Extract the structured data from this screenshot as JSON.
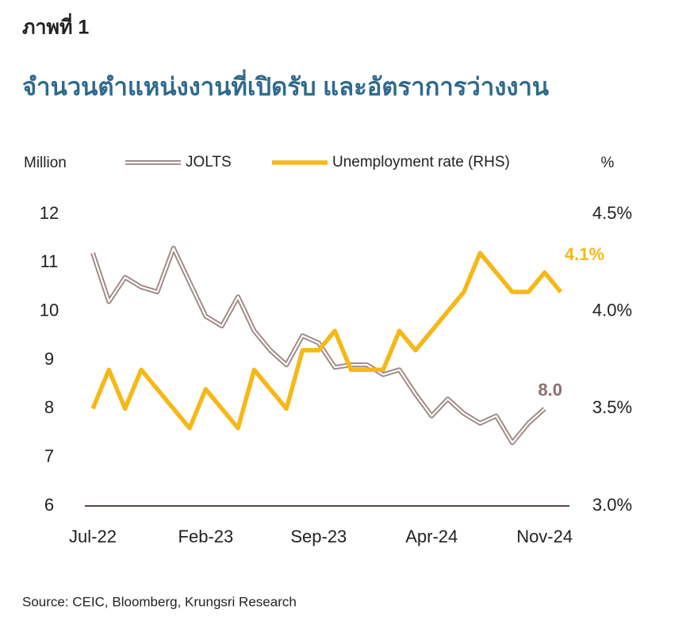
{
  "header": "ภาพที่ 1",
  "chart_data": {
    "type": "line",
    "title": "จำนวนตำแหน่งงานที่เปิดรับ และอัตราการว่างงาน",
    "y_label": "Million",
    "y2_label": "%",
    "categories": [
      "Jul-22",
      null,
      null,
      null,
      null,
      null,
      null,
      "Feb-23",
      null,
      null,
      null,
      null,
      null,
      null,
      "Sep-23",
      null,
      null,
      null,
      null,
      null,
      null,
      "Apr-24",
      null,
      null,
      null,
      null,
      null,
      null,
      "Nov-24",
      null
    ],
    "series": [
      {
        "name": "JOLTS",
        "color": "#9e8784",
        "values": [
          11.2,
          10.2,
          10.7,
          10.5,
          10.4,
          11.3,
          10.6,
          9.9,
          9.7,
          10.3,
          9.6,
          9.2,
          8.9,
          9.5,
          9.35,
          8.85,
          8.9,
          8.9,
          8.7,
          8.8,
          8.3,
          7.85,
          8.2,
          7.9,
          7.7,
          7.85,
          7.3,
          7.7,
          8.0,
          null
        ],
        "value_labels": [
          null,
          null,
          null,
          null,
          null,
          null,
          null,
          null,
          null,
          null,
          null,
          null,
          null,
          null,
          null,
          null,
          null,
          null,
          null,
          null,
          null,
          null,
          null,
          null,
          null,
          null,
          null,
          null,
          "8.0",
          null
        ]
      },
      {
        "name": "Unemployment rate (RHS)",
        "color": "#f6b817",
        "axis": "y2",
        "values": [
          3.5,
          3.7,
          3.5,
          3.7,
          3.6,
          3.5,
          3.4,
          3.6,
          3.5,
          3.4,
          3.7,
          3.6,
          3.5,
          3.8,
          3.8,
          3.9,
          3.7,
          3.7,
          3.7,
          3.9,
          3.8,
          3.9,
          4.0,
          4.1,
          4.3,
          4.2,
          4.1,
          4.1,
          4.2,
          4.1
        ],
        "value_labels": [
          null,
          null,
          null,
          null,
          null,
          null,
          null,
          null,
          null,
          null,
          null,
          null,
          null,
          null,
          null,
          null,
          null,
          null,
          null,
          null,
          null,
          null,
          null,
          null,
          null,
          null,
          null,
          null,
          null,
          "4.1%"
        ]
      }
    ],
    "ylim": [
      6,
      12
    ],
    "yticks": [
      6,
      7,
      8,
      9,
      10,
      11,
      12
    ],
    "y2lim": [
      3.0,
      4.5
    ],
    "y2ticks": [
      {
        "value": 3.0,
        "label": "3.0%"
      },
      {
        "value": 3.5,
        "label": "3.5%"
      },
      {
        "value": 4.0,
        "label": "4.0%"
      },
      {
        "value": 4.5,
        "label": "4.5%"
      }
    ],
    "grid": false,
    "legend": "top"
  },
  "source": "Source: CEIC, Bloomberg, Krungsri Research"
}
